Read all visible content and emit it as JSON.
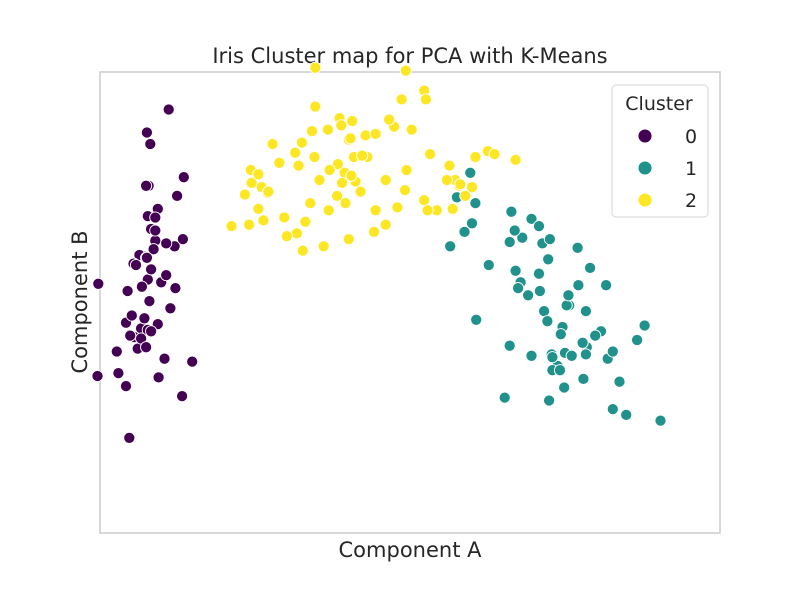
{
  "chart_data": {
    "type": "scatter",
    "title": "Iris Cluster map for PCA with K-Means",
    "xlabel": "Component A",
    "ylabel": "Component B",
    "xlim": [
      -3.2,
      4.2
    ],
    "ylim": [
      -1.6,
      1.6
    ],
    "grid": false,
    "legend": {
      "title": "Cluster",
      "placement": "top-right"
    },
    "series": [
      {
        "name": "0",
        "color": "#440154",
        "points": [
          [
            -2.68,
            0.32
          ],
          [
            -2.71,
            -0.18
          ],
          [
            -2.89,
            -0.14
          ],
          [
            -2.75,
            -0.32
          ],
          [
            -2.73,
            0.33
          ],
          [
            -2.28,
            0.74
          ],
          [
            -2.82,
            -0.09
          ],
          [
            -2.63,
            0.16
          ],
          [
            -2.89,
            -0.58
          ],
          [
            -2.67,
            -0.11
          ],
          [
            -2.51,
            0.65
          ],
          [
            -2.61,
            0.01
          ],
          [
            -2.79,
            -0.24
          ],
          [
            -3.23,
            -0.51
          ],
          [
            -2.64,
            1.18
          ],
          [
            -2.38,
            1.34
          ],
          [
            -2.62,
            0.81
          ],
          [
            -2.65,
            0.31
          ],
          [
            -2.2,
            0.87
          ],
          [
            -2.59,
            0.51
          ],
          [
            -2.31,
            0.39
          ],
          [
            -2.54,
            0.43
          ],
          [
            -3.22,
            0.13
          ],
          [
            -2.3,
            0.1
          ],
          [
            -2.36,
            -0.04
          ],
          [
            -2.51,
            -0.15
          ],
          [
            -2.47,
            0.14
          ],
          [
            -2.56,
            0.37
          ],
          [
            -2.64,
            0.31
          ],
          [
            -2.63,
            -0.19
          ],
          [
            -2.59,
            -0.2
          ],
          [
            -2.41,
            0.41
          ],
          [
            -2.65,
            0.81
          ],
          [
            -2.6,
            1.1
          ],
          [
            -2.67,
            -0.11
          ],
          [
            -2.87,
            0.08
          ],
          [
            -2.63,
            0.6
          ],
          [
            -2.8,
            0.27
          ],
          [
            -2.98,
            -0.49
          ],
          [
            -2.59,
            0.23
          ],
          [
            -2.77,
            0.26
          ],
          [
            -2.85,
            -0.94
          ],
          [
            -3.0,
            -0.34
          ],
          [
            -2.41,
            0.19
          ],
          [
            -2.21,
            0.44
          ],
          [
            -2.71,
            -0.25
          ],
          [
            -2.54,
            0.5
          ],
          [
            -2.84,
            -0.23
          ],
          [
            -2.54,
            0.59
          ],
          [
            -2.7,
            0.11
          ],
          [
            -2.43,
            -0.39
          ],
          [
            -2.65,
            -0.31
          ],
          [
            -2.5,
            -0.52
          ],
          [
            -2.22,
            -0.65
          ],
          [
            -2.1,
            -0.41
          ]
        ]
      },
      {
        "name": "1",
        "color": "#21918c",
        "points": [
          [
            1.28,
            0.69
          ],
          [
            1.69,
            0.42
          ],
          [
            1.29,
            -0.12
          ],
          [
            2.5,
            0.38
          ],
          [
            1.84,
            0.45
          ],
          [
            2.15,
            0.3
          ],
          [
            1.75,
            0.5
          ],
          [
            1.15,
            0.49
          ],
          [
            0.98,
            0.39
          ],
          [
            1.8,
            0.1
          ],
          [
            2.61,
            -0.31
          ],
          [
            2.35,
            -0.35
          ],
          [
            2.32,
            -0.17
          ],
          [
            2.92,
            -0.74
          ],
          [
            2.56,
            -0.28
          ],
          [
            2.4,
            -0.02
          ],
          [
            3.3,
            -0.16
          ],
          [
            2.86,
            -0.39
          ],
          [
            2.19,
            -0.36
          ],
          [
            2.43,
            -0.37
          ],
          [
            2.51,
            0.12
          ],
          [
            1.82,
            0.14
          ],
          [
            2.1,
            -0.06
          ],
          [
            2.37,
            -0.02
          ],
          [
            2.39,
            0.05
          ],
          [
            2.84,
            0.12
          ],
          [
            2.78,
            -0.2
          ],
          [
            1.79,
            0.1
          ],
          [
            2.04,
            0.2
          ],
          [
            1.44,
            0.26
          ],
          [
            1.76,
            0.22
          ],
          [
            2.05,
            0.08
          ],
          [
            2.26,
            -0.44
          ],
          [
            1.95,
            -0.37
          ],
          [
            2.57,
            -0.53
          ],
          [
            2.65,
            0.24
          ],
          [
            2.08,
            0.41
          ],
          [
            2.92,
            -0.34
          ],
          [
            2.6,
            -0.06
          ],
          [
            1.95,
            0.58
          ],
          [
            2.2,
            -0.47
          ],
          [
            3.08,
            -0.78
          ],
          [
            2.14,
            -0.13
          ],
          [
            2.6,
            -0.36
          ],
          [
            1.63,
            -0.66
          ],
          [
            2.16,
            -0.68
          ],
          [
            2.34,
            -0.59
          ],
          [
            3.21,
            -0.26
          ],
          [
            2.71,
            -0.23
          ],
          [
            3.0,
            -0.55
          ],
          [
            1.91,
            0.05
          ],
          [
            1.24,
            0.55
          ],
          [
            2.17,
            0.44
          ],
          [
            2.04,
            0.53
          ],
          [
            1.22,
            0.9
          ],
          [
            1.06,
            0.73
          ],
          [
            1.69,
            -0.3
          ],
          [
            2.2,
            -0.38
          ],
          [
            2.3,
            -0.22
          ],
          [
            2.29,
            -0.47
          ],
          [
            3.49,
            -0.82
          ],
          [
            1.71,
            0.63
          ]
        ]
      },
      {
        "name": "2",
        "color": "#fde725",
        "points": [
          [
            1.43,
            1.05
          ],
          [
            1.76,
            0.99
          ],
          [
            1.24,
            0.8
          ],
          [
            0.46,
            0.92
          ],
          [
            1.09,
            0.81
          ],
          [
            1.04,
            0.85
          ],
          [
            0.67,
            1.47
          ],
          [
            0.74,
            1.03
          ],
          [
            0.52,
            1.2
          ],
          [
            0.31,
            1.22
          ],
          [
            0.21,
            0.85
          ],
          [
            0.44,
            0.78
          ],
          [
            0.25,
            1.27
          ],
          [
            -0.01,
            1.01
          ],
          [
            0.07,
            0.49
          ],
          [
            -0.19,
            1.26
          ],
          [
            -0.36,
            0.96
          ],
          [
            -0.23,
            1.13
          ],
          [
            -0.28,
            0.9
          ],
          [
            -0.09,
            0.77
          ],
          [
            0.09,
            0.64
          ],
          [
            -0.15,
            0.84
          ],
          [
            -0.37,
            0.74
          ],
          [
            -0.63,
            1.36
          ],
          [
            -0.58,
            0.85
          ],
          [
            -0.87,
            1.04
          ],
          [
            -1.06,
            0.97
          ],
          [
            -1.14,
            1.1
          ],
          [
            -1.27,
            0.8
          ],
          [
            -1.4,
            0.92
          ],
          [
            -1.31,
            0.65
          ],
          [
            -1.42,
            0.54
          ],
          [
            -1.47,
            0.75
          ],
          [
            -1.2,
            0.76
          ],
          [
            -1.19,
            0.77
          ],
          [
            -1.39,
            0.83
          ],
          [
            -1.63,
            0.53
          ],
          [
            -1.25,
            0.57
          ],
          [
            -1.0,
            0.59
          ],
          [
            -0.83,
            0.95
          ],
          [
            -0.67,
            1.19
          ],
          [
            -0.64,
            1.01
          ],
          [
            -0.85,
            0.48
          ],
          [
            -0.78,
            0.36
          ],
          [
            -0.97,
            0.46
          ],
          [
            -0.47,
            0.64
          ],
          [
            -0.27,
            0.69
          ],
          [
            -0.2,
            0.88
          ],
          [
            0.82,
            0.64
          ],
          [
            0.69,
            1.41
          ],
          [
            1.1,
            0.82
          ],
          [
            1.51,
            1.03
          ],
          [
            -0.46,
            0.92
          ],
          [
            -0.34,
            1.28
          ],
          [
            0.4,
            1.41
          ],
          [
            0.45,
            1.61
          ],
          [
            -0.63,
            1.63
          ],
          [
            -0.79,
            1.11
          ],
          [
            -0.32,
            1.23
          ],
          [
            0.67,
            0.71
          ],
          [
            1.01,
            0.65
          ],
          [
            -0.31,
            0.83
          ],
          [
            -0.75,
            0.56
          ],
          [
            -0.53,
            0.39
          ],
          [
            -0.23,
            0.44
          ],
          [
            0.35,
            0.66
          ],
          [
            1.28,
            1.01
          ],
          [
            1.16,
            0.74
          ],
          [
            0.94,
            0.85
          ],
          [
            0.21,
            0.54
          ],
          [
            -0.03,
            1.16
          ],
          [
            0.09,
            1.17
          ],
          [
            -0.21,
            1.14
          ],
          [
            -0.69,
            0.69
          ],
          [
            -0.17,
            1.01
          ],
          [
            -0.07,
            1.02
          ],
          [
            0.97,
            0.95
          ],
          [
            0.71,
            0.64
          ],
          [
            -0.48,
            1.2
          ],
          [
            -1.31,
            0.89
          ]
        ]
      }
    ]
  }
}
